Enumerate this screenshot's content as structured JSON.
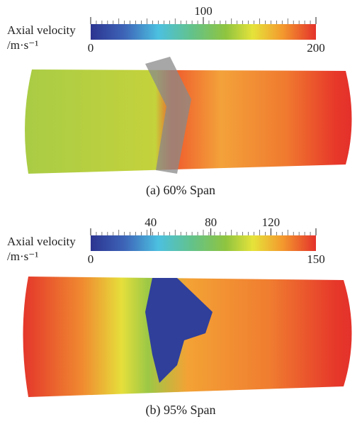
{
  "panels": [
    {
      "label_lines": [
        "Axial velocity",
        "/m·s⁻¹"
      ],
      "lim": [
        0,
        200
      ],
      "ticks": [
        0,
        100,
        200
      ],
      "caption": "(a) 60% Span"
    },
    {
      "label_lines": [
        "Axial velocity",
        "/m·s⁻¹"
      ],
      "lim": [
        0,
        150
      ],
      "ticks": [
        0,
        40,
        80,
        120,
        150
      ],
      "caption": "(b) 95% Span"
    }
  ]
}
